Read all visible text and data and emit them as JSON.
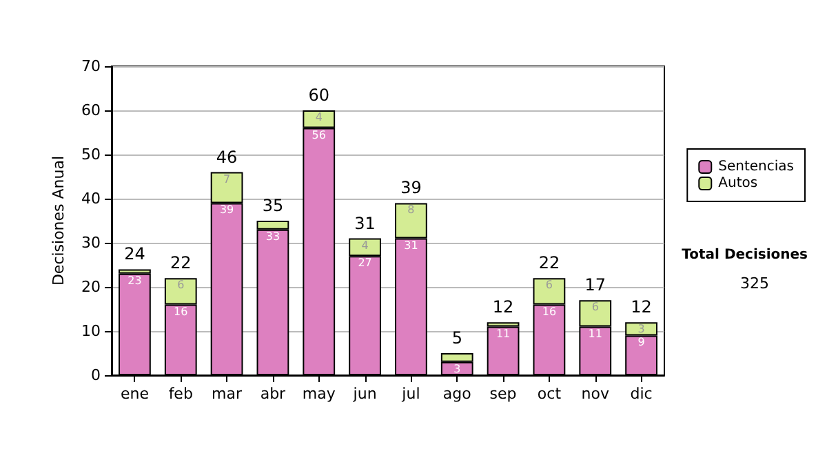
{
  "chart_data": {
    "type": "bar",
    "stacked": true,
    "ylabel": "Decisiones Anual",
    "categories": [
      "ene",
      "feb",
      "mar",
      "abr",
      "may",
      "jun",
      "jul",
      "ago",
      "sep",
      "oct",
      "nov",
      "dic"
    ],
    "series": [
      {
        "name": "Sentencias",
        "color": "#dd80c0",
        "values": [
          23,
          16,
          39,
          33,
          56,
          27,
          31,
          3,
          11,
          16,
          11,
          9
        ],
        "value_labels": [
          "23",
          "16",
          "39",
          "33",
          "56",
          "27",
          "31",
          "3",
          "11",
          "16",
          "11",
          "9"
        ]
      },
      {
        "name": "Autos",
        "color": "#d4ec94",
        "values": [
          1,
          6,
          7,
          2,
          4,
          4,
          8,
          2,
          1,
          6,
          6,
          3
        ],
        "value_labels": [
          null,
          "6",
          "7",
          null,
          "4",
          "4",
          "8",
          null,
          null,
          "6",
          "6",
          "3"
        ]
      }
    ],
    "totals": [
      "24",
      "22",
      "46",
      "35",
      "60",
      "31",
      "39",
      "5",
      "12",
      "22",
      "17",
      "12"
    ],
    "ylim": [
      0,
      70
    ],
    "yticks": [
      0,
      10,
      20,
      30,
      40,
      50,
      60,
      70
    ],
    "grid": "y",
    "legend": "right",
    "annotations": [
      "Total Decisiones",
      "325"
    ]
  }
}
